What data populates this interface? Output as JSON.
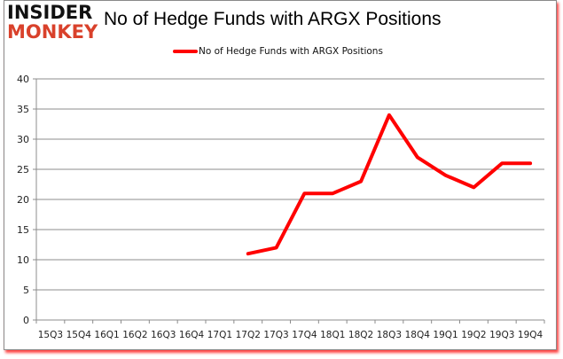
{
  "logo": {
    "line1": "INSIDER",
    "line2": "MONKEY"
  },
  "header": {
    "title": "No of Hedge Funds with ARGX Positions"
  },
  "legend": {
    "label": "No of Hedge Funds with ARGX Positions",
    "color": "#ff0000"
  },
  "colors": {
    "line": "#ff0000",
    "grid": "#8c8c8c",
    "frame_shadow": "#ff0000"
  },
  "chart_data": {
    "type": "line",
    "title": "No of Hedge Funds with ARGX Positions",
    "xlabel": "",
    "ylabel": "",
    "ylim": [
      0,
      40
    ],
    "yticks": [
      0,
      5,
      10,
      15,
      20,
      25,
      30,
      35,
      40
    ],
    "grid": true,
    "legend_position": "top",
    "categories": [
      "15Q3",
      "15Q4",
      "16Q1",
      "16Q2",
      "16Q3",
      "16Q4",
      "17Q1",
      "17Q2",
      "17Q3",
      "17Q4",
      "18Q1",
      "18Q2",
      "18Q3",
      "18Q4",
      "19Q1",
      "19Q2",
      "19Q3",
      "19Q4"
    ],
    "series": [
      {
        "name": "No of Hedge Funds with ARGX Positions",
        "values": [
          null,
          null,
          null,
          null,
          null,
          null,
          null,
          11,
          12,
          21,
          21,
          23,
          34,
          27,
          24,
          22,
          26,
          26
        ]
      }
    ]
  }
}
